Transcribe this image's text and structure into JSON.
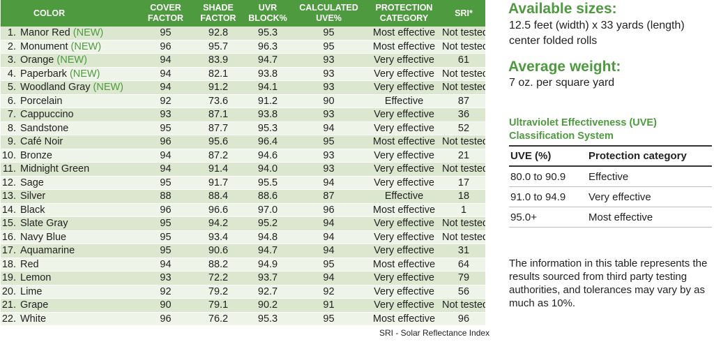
{
  "table": {
    "headers": {
      "color": "COLOR",
      "cover": [
        "COVER",
        "FACTOR"
      ],
      "shade": [
        "SHADE",
        "FACTOR"
      ],
      "uvr": [
        "UVR",
        "BLOCK%"
      ],
      "calc": [
        "CALCULATED",
        "UVE%"
      ],
      "protection": [
        "PROTECTION",
        "CATEGORY"
      ],
      "sri": "SRI*"
    },
    "rows": [
      {
        "num": "1.",
        "name": "Manor Red",
        "tag": "(NEW)",
        "cover": "95",
        "shade": "92.8",
        "uvr": "95.3",
        "uve": "95",
        "category": "Most effective",
        "sri": "Not tested"
      },
      {
        "num": "2.",
        "name": "Monument",
        "tag": "(NEW)",
        "cover": "96",
        "shade": "95.7",
        "uvr": "96.3",
        "uve": "95",
        "category": "Most effective",
        "sri": "Not tested"
      },
      {
        "num": "3.",
        "name": "Orange",
        "tag": "(NEW)",
        "cover": "94",
        "shade": "83.9",
        "uvr": "94.7",
        "uve": "93",
        "category": "Very effective",
        "sri": "61"
      },
      {
        "num": "4.",
        "name": "Paperbark",
        "tag": "(NEW)",
        "cover": "94",
        "shade": "82.1",
        "uvr": "93.8",
        "uve": "93",
        "category": "Very effective",
        "sri": "Not tested"
      },
      {
        "num": "5.",
        "name": "Woodland Gray",
        "tag": "(NEW)",
        "cover": "94",
        "shade": "91.2",
        "uvr": "94.1",
        "uve": "93",
        "category": "Very effective",
        "sri": "Not tested"
      },
      {
        "num": "6.",
        "name": "Porcelain",
        "tag": "",
        "cover": "92",
        "shade": "73.6",
        "uvr": "91.2",
        "uve": "90",
        "category": "Effective",
        "sri": "87"
      },
      {
        "num": "7.",
        "name": "Cappuccino",
        "tag": "",
        "cover": "93",
        "shade": "87.1",
        "uvr": "93.8",
        "uve": "93",
        "category": "Very effective",
        "sri": "36"
      },
      {
        "num": "8.",
        "name": "Sandstone",
        "tag": "",
        "cover": "95",
        "shade": "87.7",
        "uvr": "95.3",
        "uve": "94",
        "category": "Very effective",
        "sri": "52"
      },
      {
        "num": "9.",
        "name": "Café Noir",
        "tag": "",
        "cover": "96",
        "shade": "95.6",
        "uvr": "96.4",
        "uve": "95",
        "category": "Most effective",
        "sri": "Not tested"
      },
      {
        "num": "10.",
        "name": "Bronze",
        "tag": "",
        "cover": "94",
        "shade": "87.2",
        "uvr": "94.6",
        "uve": "93",
        "category": "Very effective",
        "sri": "21"
      },
      {
        "num": "11.",
        "name": "Midnight Green",
        "tag": "",
        "cover": "94",
        "shade": "91.4",
        "uvr": "94.0",
        "uve": "93",
        "category": "Very effective",
        "sri": "Not tested"
      },
      {
        "num": "12.",
        "name": "Sage",
        "tag": "",
        "cover": "95",
        "shade": "91.7",
        "uvr": "95.5",
        "uve": "94",
        "category": "Very effective",
        "sri": "17"
      },
      {
        "num": "13.",
        "name": "Silver",
        "tag": "",
        "cover": "88",
        "shade": "88.4",
        "uvr": "88.6",
        "uve": "87",
        "category": "Effective",
        "sri": "18"
      },
      {
        "num": "14.",
        "name": "Black",
        "tag": "",
        "cover": "96",
        "shade": "96.6",
        "uvr": "97.0",
        "uve": "96",
        "category": "Most effective",
        "sri": "1"
      },
      {
        "num": "15.",
        "name": "Slate Gray",
        "tag": "",
        "cover": "95",
        "shade": "94.2",
        "uvr": "95.2",
        "uve": "94",
        "category": "Very effective",
        "sri": "Not tested"
      },
      {
        "num": "16.",
        "name": "Navy Blue",
        "tag": "",
        "cover": "95",
        "shade": "93.4",
        "uvr": "94.8",
        "uve": "94",
        "category": "Very effective",
        "sri": "Not tested"
      },
      {
        "num": "17.",
        "name": "Aquamarine",
        "tag": "",
        "cover": "95",
        "shade": "90.6",
        "uvr": "94.7",
        "uve": "94",
        "category": "Very effective",
        "sri": "31"
      },
      {
        "num": "18.",
        "name": "Red",
        "tag": "",
        "cover": "94",
        "shade": "88.2",
        "uvr": "94.9",
        "uve": "95",
        "category": "Most effective",
        "sri": "64"
      },
      {
        "num": "19.",
        "name": "Lemon",
        "tag": "",
        "cover": "93",
        "shade": "72.2",
        "uvr": "93.7",
        "uve": "94",
        "category": "Very effective",
        "sri": "79"
      },
      {
        "num": "20.",
        "name": "Lime",
        "tag": "",
        "cover": "92",
        "shade": "79.2",
        "uvr": "92.7",
        "uve": "92",
        "category": "Very effective",
        "sri": "56"
      },
      {
        "num": "21.",
        "name": "Grape",
        "tag": "",
        "cover": "90",
        "shade": "79.1",
        "uvr": "90.2",
        "uve": "91",
        "category": "Very effective",
        "sri": "Not tested"
      },
      {
        "num": "22.",
        "name": "White",
        "tag": "",
        "cover": "96",
        "shade": "76.2",
        "uvr": "95.3",
        "uve": "95",
        "category": "Most effective",
        "sri": "96"
      }
    ],
    "footnote": "SRI - Solar Reflectance Index"
  },
  "sizes": {
    "heading": "Available sizes:",
    "line1": "12.5 feet (width) x 33 yards (length)",
    "line2": "center folded rolls"
  },
  "weight": {
    "heading": "Average weight:",
    "text": "7 oz. per square yard"
  },
  "uve": {
    "title_line1": "Ultraviolet Effectiveness (UVE)",
    "title_line2": "Classification System",
    "headers": [
      "UVE (%)",
      "Protection category"
    ],
    "rows": [
      [
        "80.0 to 90.9",
        "Effective"
      ],
      [
        "91.0 to 94.9",
        "Very effective"
      ],
      [
        "95.0+",
        "Most effective"
      ]
    ]
  },
  "note": "The information in this table represents the results sourced from third party testing authorities, and tolerances may vary by as much as 10%.",
  "colors": {
    "green": "#4e9a3f",
    "row_dark": "#dbe7cf",
    "row_light": "#eef4e7"
  }
}
